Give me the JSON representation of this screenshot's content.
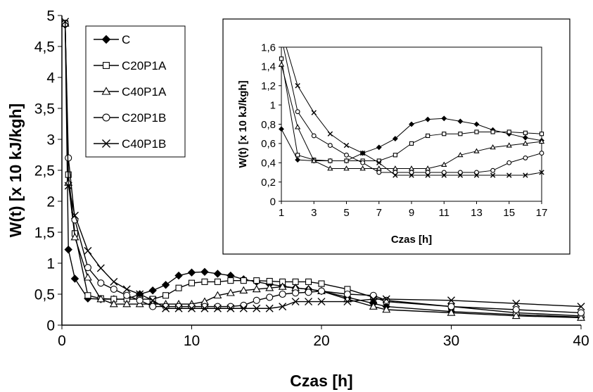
{
  "chart_data": [
    {
      "type": "line",
      "xlabel": "Czas [h]",
      "ylabel": "W(t) [x 10 kJ/kgh]",
      "xlim": [
        0,
        40
      ],
      "ylim": [
        0,
        5
      ],
      "x_ticks": [
        "0",
        "10",
        "20",
        "30",
        "40"
      ],
      "y_ticks": [
        "0",
        "0,5",
        "1",
        "1,5",
        "2",
        "2,5",
        "3",
        "3,5",
        "4",
        "4,5",
        "5"
      ],
      "grid": false,
      "legend_position": "top-left",
      "series": [
        {
          "name": "C",
          "marker": "diamond-filled",
          "x": [
            0.25,
            0.5,
            1,
            2,
            3,
            4,
            5,
            6,
            7,
            8,
            9,
            10,
            11,
            12,
            13,
            14,
            15,
            16,
            17,
            18,
            19,
            20,
            22,
            24,
            25,
            30,
            35,
            40
          ],
          "y": [
            4.85,
            1.22,
            0.75,
            0.43,
            0.42,
            0.42,
            0.42,
            0.5,
            0.56,
            0.65,
            0.8,
            0.85,
            0.86,
            0.83,
            0.8,
            0.74,
            0.7,
            0.66,
            0.63,
            0.6,
            0.58,
            0.55,
            0.45,
            0.35,
            0.3,
            0.22,
            0.17,
            0.13
          ]
        },
        {
          "name": "C20P1A",
          "marker": "square-open",
          "x": [
            0.25,
            0.5,
            1,
            2,
            3,
            4,
            5,
            6,
            7,
            8,
            9,
            10,
            11,
            12,
            13,
            14,
            15,
            16,
            17,
            18,
            19,
            20,
            22,
            24,
            25,
            30,
            35,
            40
          ],
          "y": [
            4.87,
            2.43,
            1.48,
            0.48,
            0.43,
            0.42,
            0.42,
            0.42,
            0.42,
            0.48,
            0.6,
            0.68,
            0.7,
            0.7,
            0.72,
            0.72,
            0.72,
            0.71,
            0.7,
            0.7,
            0.7,
            0.67,
            0.58,
            0.45,
            0.38,
            0.3,
            0.2,
            0.15
          ]
        },
        {
          "name": "C40P1A",
          "marker": "triangle-open",
          "x": [
            0.25,
            0.5,
            1,
            2,
            3,
            4,
            5,
            6,
            7,
            8,
            9,
            10,
            11,
            12,
            13,
            14,
            15,
            16,
            17,
            18,
            19,
            20,
            22,
            24,
            25,
            30,
            35,
            40
          ],
          "y": [
            4.87,
            2.3,
            1.42,
            0.77,
            0.42,
            0.34,
            0.34,
            0.34,
            0.34,
            0.34,
            0.34,
            0.34,
            0.38,
            0.48,
            0.52,
            0.56,
            0.58,
            0.6,
            0.62,
            0.6,
            0.58,
            0.55,
            0.42,
            0.3,
            0.25,
            0.2,
            0.15,
            0.12
          ]
        },
        {
          "name": "C20P1B",
          "marker": "circle-open",
          "x": [
            0.25,
            0.5,
            1,
            2,
            3,
            4,
            5,
            6,
            7,
            8,
            9,
            10,
            11,
            12,
            13,
            14,
            15,
            16,
            17,
            18,
            19,
            20,
            22,
            24,
            25,
            30,
            35,
            40
          ],
          "y": [
            4.87,
            2.7,
            1.7,
            0.93,
            0.68,
            0.58,
            0.48,
            0.4,
            0.3,
            0.3,
            0.3,
            0.3,
            0.3,
            0.3,
            0.3,
            0.32,
            0.4,
            0.45,
            0.5,
            0.52,
            0.53,
            0.55,
            0.5,
            0.48,
            0.4,
            0.3,
            0.25,
            0.2
          ]
        },
        {
          "name": "C40P1B",
          "marker": "x",
          "x": [
            0.25,
            0.5,
            1,
            2,
            3,
            4,
            5,
            6,
            7,
            8,
            9,
            10,
            11,
            12,
            13,
            14,
            15,
            16,
            17,
            18,
            19,
            20,
            22,
            24,
            25,
            30,
            35,
            40
          ],
          "y": [
            4.9,
            2.25,
            1.77,
            1.2,
            0.92,
            0.7,
            0.58,
            0.5,
            0.4,
            0.27,
            0.27,
            0.27,
            0.27,
            0.27,
            0.27,
            0.27,
            0.27,
            0.27,
            0.3,
            0.38,
            0.38,
            0.38,
            0.38,
            0.42,
            0.42,
            0.4,
            0.35,
            0.3
          ]
        }
      ]
    },
    {
      "type": "line",
      "xlabel": "Czas [h]",
      "ylabel": "W(t) [x 10 kJ/kgh]",
      "xlim": [
        1,
        17
      ],
      "ylim": [
        0,
        1.6
      ],
      "x_ticks": [
        "1",
        "3",
        "5",
        "7",
        "9",
        "11",
        "13",
        "15",
        "17"
      ],
      "y_ticks": [
        "0",
        "0,2",
        "0,4",
        "0,6",
        "0,8",
        "1",
        "1,2",
        "1,4",
        "1,6"
      ],
      "grid": false,
      "series": [
        {
          "name": "C",
          "marker": "diamond-filled",
          "x": [
            1,
            2,
            3,
            4,
            5,
            6,
            7,
            8,
            9,
            10,
            11,
            12,
            13,
            14,
            15,
            16,
            17
          ],
          "y": [
            0.75,
            0.43,
            0.42,
            0.42,
            0.42,
            0.5,
            0.56,
            0.65,
            0.8,
            0.85,
            0.86,
            0.83,
            0.8,
            0.74,
            0.7,
            0.66,
            0.63
          ]
        },
        {
          "name": "C20P1A",
          "marker": "square-open",
          "x": [
            1,
            2,
            3,
            4,
            5,
            6,
            7,
            8,
            9,
            10,
            11,
            12,
            13,
            14,
            15,
            16,
            17
          ],
          "y": [
            1.48,
            0.48,
            0.43,
            0.42,
            0.42,
            0.42,
            0.42,
            0.48,
            0.6,
            0.68,
            0.7,
            0.7,
            0.72,
            0.72,
            0.72,
            0.71,
            0.7
          ]
        },
        {
          "name": "C40P1A",
          "marker": "triangle-open",
          "x": [
            1,
            2,
            3,
            4,
            5,
            6,
            7,
            8,
            9,
            10,
            11,
            12,
            13,
            14,
            15,
            16,
            17
          ],
          "y": [
            1.42,
            0.77,
            0.42,
            0.34,
            0.34,
            0.34,
            0.34,
            0.34,
            0.34,
            0.34,
            0.38,
            0.48,
            0.52,
            0.56,
            0.58,
            0.6,
            0.62
          ]
        },
        {
          "name": "C20P1B",
          "marker": "circle-open",
          "x": [
            1,
            2,
            3,
            4,
            5,
            6,
            7,
            8,
            9,
            10,
            11,
            12,
            13,
            14,
            15,
            16,
            17
          ],
          "y": [
            1.7,
            0.93,
            0.68,
            0.58,
            0.48,
            0.4,
            0.3,
            0.3,
            0.3,
            0.3,
            0.3,
            0.3,
            0.3,
            0.32,
            0.4,
            0.45,
            0.5
          ]
        },
        {
          "name": "C40P1B",
          "marker": "x",
          "x": [
            1,
            2,
            3,
            4,
            5,
            6,
            7,
            8,
            9,
            10,
            11,
            12,
            13,
            14,
            15,
            16,
            17
          ],
          "y": [
            1.77,
            1.2,
            0.92,
            0.7,
            0.58,
            0.5,
            0.4,
            0.27,
            0.27,
            0.27,
            0.27,
            0.27,
            0.27,
            0.27,
            0.27,
            0.27,
            0.3
          ]
        }
      ]
    }
  ]
}
